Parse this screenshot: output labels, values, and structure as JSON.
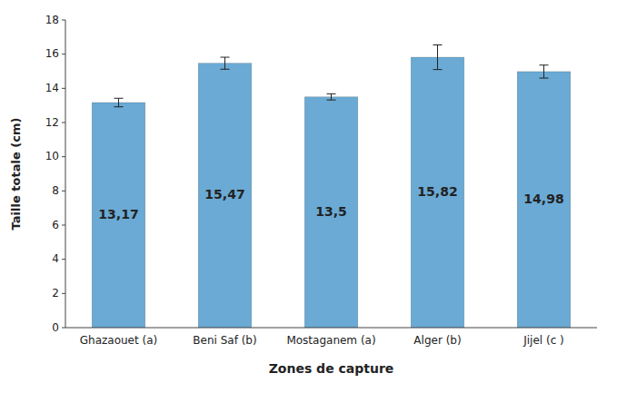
{
  "chart_data": {
    "type": "bar",
    "categories": [
      "Ghazaouet (a)",
      "Beni Saf (b)",
      "Mostaganem (a)",
      "Alger (b)",
      "Jijel (c )"
    ],
    "values": [
      13.17,
      15.47,
      13.5,
      15.82,
      14.98
    ],
    "errors": [
      0.25,
      0.35,
      0.18,
      0.72,
      0.38
    ],
    "value_labels": [
      "13,17",
      "15,47",
      "13,5",
      "15,82",
      "14,98"
    ],
    "data_labels": true,
    "color": "#6aaad4",
    "xlabel": "Zones de capture",
    "ylabel": "Taille totale (cm)",
    "ylim": [
      0,
      18
    ],
    "yticks": [
      0,
      2,
      4,
      6,
      8,
      10,
      12,
      14,
      16,
      18
    ],
    "grid": false
  }
}
